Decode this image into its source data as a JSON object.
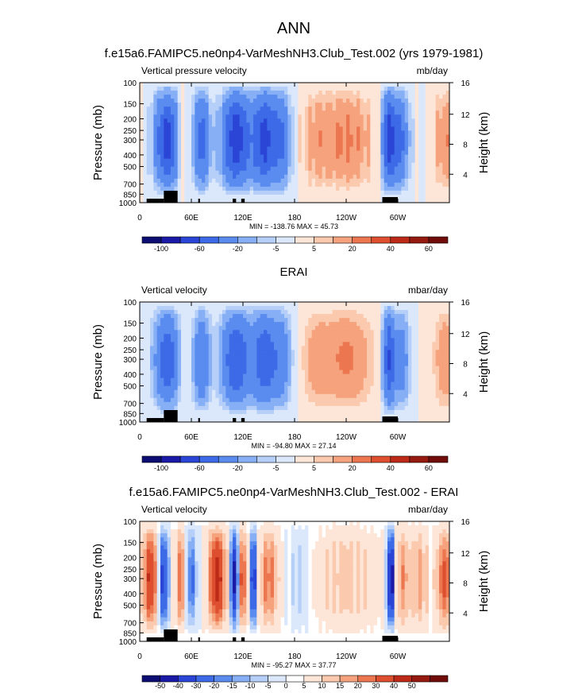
{
  "figure": {
    "title": "ANN"
  },
  "colors": {
    "scale_a": [
      "#0d0d73",
      "#1a1aa6",
      "#2b45d6",
      "#3d6ae6",
      "#5a8cf0",
      "#86aff5",
      "#b5cff9",
      "#dbe8fc",
      "#fde6d8",
      "#fbc9ad",
      "#f5a27d",
      "#ec7650",
      "#dd4f2f",
      "#bd2b18",
      "#951a10",
      "#700c0a"
    ],
    "scale_b": [
      "#0d0d73",
      "#1a1aa6",
      "#2b45d6",
      "#3d6ae6",
      "#5a8cf0",
      "#86aff5",
      "#b5cff9",
      "#dbe8fc",
      "#ffffff",
      "#fde6d8",
      "#fbc9ad",
      "#f5a27d",
      "#ec7650",
      "#dd4f2f",
      "#bd2b18",
      "#951a10",
      "#700c0a"
    ]
  },
  "chart_data": [
    {
      "type": "heatmap",
      "title": "f.e15a6.FAMIPC5.ne0np4-VarMeshNH3.Club_Test.002 (yrs 1979-1981)",
      "left_label": "Vertical pressure velocity",
      "right_label": "mb/day",
      "ylabel": "Pressure (mb)",
      "ylabel2": "Height (km)",
      "pressure_ticks": [
        "100",
        "150",
        "200",
        "250",
        "300",
        "400",
        "500",
        "700",
        "850",
        "1000"
      ],
      "height_ticks": [
        "16",
        "12",
        "8",
        "4"
      ],
      "lon_ticks": [
        "0",
        "60E",
        "120E",
        "180",
        "120W",
        "60W"
      ],
      "stats": "MIN = -138.76  MAX =  45.73",
      "colorbar_labels": [
        "-100",
        "-60",
        "-20",
        "-5",
        "5",
        "20",
        "40",
        "60"
      ],
      "min": -138.76,
      "max": 45.73,
      "lon_range": [
        0,
        360
      ],
      "pressure_range": [
        100,
        1000
      ],
      "height_range_km": [
        0,
        16
      ]
    },
    {
      "type": "heatmap",
      "title": "ERAI",
      "left_label": "Vertical velocity",
      "right_label": "mbar/day",
      "ylabel": "Pressure (mb)",
      "ylabel2": "Height (km)",
      "pressure_ticks": [
        "100",
        "150",
        "200",
        "250",
        "300",
        "400",
        "500",
        "700",
        "850",
        "1000"
      ],
      "height_ticks": [
        "16",
        "12",
        "8",
        "4"
      ],
      "lon_ticks": [
        "0",
        "60E",
        "120E",
        "180",
        "120W",
        "60W"
      ],
      "stats": "MIN = -94.80  MAX =  27.14",
      "colorbar_labels": [
        "-100",
        "-60",
        "-20",
        "-5",
        "5",
        "20",
        "40",
        "60"
      ],
      "min": -94.8,
      "max": 27.14,
      "lon_range": [
        0,
        360
      ],
      "pressure_range": [
        100,
        1000
      ],
      "height_range_km": [
        0,
        16
      ]
    },
    {
      "type": "heatmap",
      "title": "f.e15a6.FAMIPC5.ne0np4-VarMeshNH3.Club_Test.002 - ERAI",
      "left_label": "Vertical velocity",
      "right_label": "mbar/day",
      "ylabel": "Pressure (mb)",
      "ylabel2": "Height (km)",
      "pressure_ticks": [
        "100",
        "150",
        "200",
        "250",
        "300",
        "400",
        "500",
        "700",
        "850",
        "1000"
      ],
      "height_ticks": [
        "16",
        "12",
        "8",
        "4"
      ],
      "lon_ticks": [
        "0",
        "60E",
        "120E",
        "180",
        "120W",
        "60W"
      ],
      "stats": "MIN = -95.27  MAX =  37.77",
      "colorbar_labels": [
        "-50",
        "-40",
        "-30",
        "-20",
        "-15",
        "-10",
        "-5",
        "0",
        "5",
        "10",
        "15",
        "20",
        "30",
        "40",
        "50"
      ],
      "min": -95.27,
      "max": 37.77,
      "lon_range": [
        0,
        360
      ],
      "pressure_range": [
        100,
        1000
      ],
      "height_range_km": [
        0,
        16
      ]
    }
  ]
}
